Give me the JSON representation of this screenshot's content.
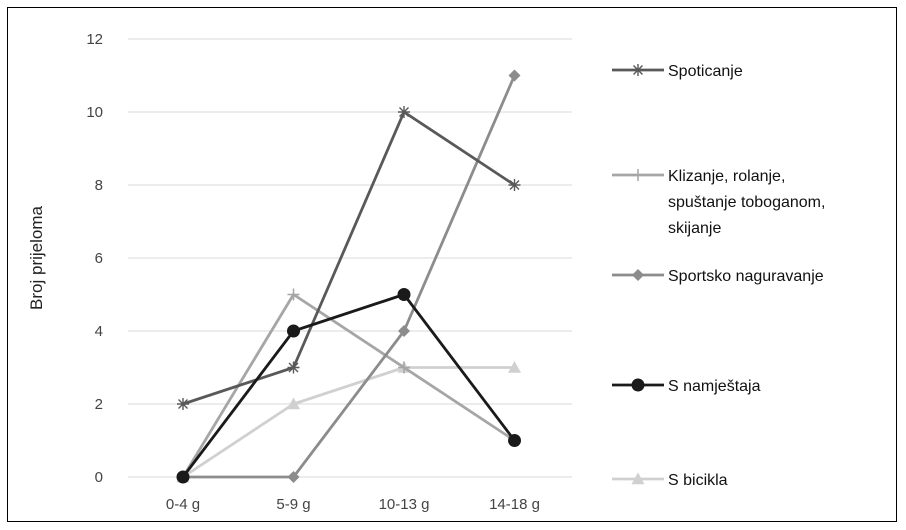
{
  "chart_data": {
    "type": "line",
    "categories": [
      "0-4 g",
      "5-9 g",
      "10-13 g",
      "14-18 g"
    ],
    "ylabel": "Broj prijeloma",
    "xlabel": "",
    "ylim": [
      0,
      12
    ],
    "yticks": [
      0,
      2,
      4,
      6,
      8,
      10,
      12
    ],
    "grid": true,
    "legend_position": "right",
    "series": [
      {
        "name": "Spoticanje",
        "values": [
          2,
          3,
          10,
          8
        ],
        "color": "#595959",
        "marker": "star",
        "legend_lines": [
          "Spoticanje"
        ]
      },
      {
        "name": "Klizanje, rolanje, spuštanje toboganom, skijanje",
        "values": [
          0,
          5,
          3,
          1
        ],
        "color": "#a6a6a6",
        "marker": "plus",
        "legend_lines": [
          "Klizanje, rolanje,",
          "spuštanje toboganom,",
          "skijanje"
        ]
      },
      {
        "name": "Sportsko naguravanje",
        "values": [
          0,
          0,
          4,
          11
        ],
        "color": "#8c8c8c",
        "marker": "diamond",
        "legend_lines": [
          "Sportsko naguravanje"
        ]
      },
      {
        "name": "S namještaja",
        "values": [
          0,
          4,
          5,
          1
        ],
        "color": "#1a1a1a",
        "marker": "circle",
        "legend_lines": [
          "S namještaja"
        ]
      },
      {
        "name": "S bicikla",
        "values": [
          0,
          2,
          3,
          3
        ],
        "color": "#d0d0d0",
        "marker": "triangle",
        "legend_lines": [
          "S bicikla"
        ]
      }
    ]
  }
}
